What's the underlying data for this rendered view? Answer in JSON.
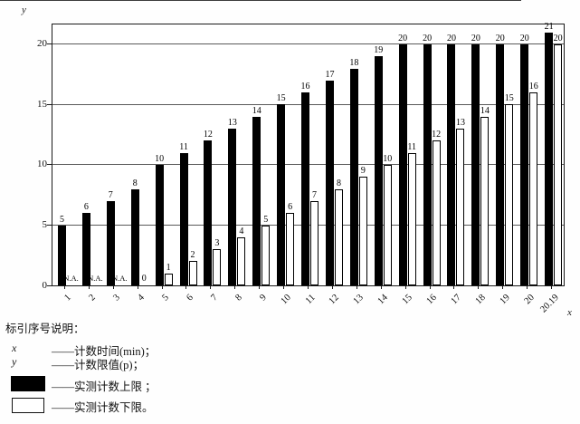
{
  "chart_data": {
    "type": "bar",
    "title": "",
    "xlabel": "x",
    "ylabel": "y",
    "categories": [
      "1",
      "2",
      "3",
      "4",
      "5",
      "6",
      "7",
      "8",
      "9",
      "10",
      "11",
      "12",
      "13",
      "14",
      "15",
      "16",
      "17",
      "18",
      "19",
      "20",
      "20.19"
    ],
    "series": [
      {
        "name": "实测计数上限",
        "color": "#000000",
        "values": [
          5,
          6,
          7,
          8,
          10,
          11,
          12,
          13,
          14,
          15,
          16,
          17,
          18,
          19,
          20,
          20,
          20,
          20,
          20,
          20,
          21
        ]
      },
      {
        "name": "实测计数下限",
        "color": "#ffffff",
        "values": [
          "N.A.",
          "N.A.",
          "N.A.",
          0,
          1,
          2,
          3,
          4,
          5,
          6,
          7,
          8,
          9,
          10,
          11,
          12,
          13,
          14,
          15,
          16,
          20
        ]
      }
    ],
    "na_label": "N.A.",
    "y_ticks": [
      0,
      5,
      10,
      15,
      20
    ],
    "ylim": [
      0,
      21.65
    ],
    "grid": true,
    "legend_position": "bottom"
  },
  "legend": {
    "title": "标引序号说明：",
    "items": [
      {
        "symbol": "x",
        "label": "——计数时间(min)；"
      },
      {
        "symbol": "y",
        "label": "——计数限值(p)；"
      },
      {
        "symbol": "black-swatch",
        "label": "——实测计数上限 ；"
      },
      {
        "symbol": "white-swatch",
        "label": "——实测计数下限。"
      }
    ]
  },
  "axes": {
    "x_title": "x",
    "y_title": "y"
  }
}
